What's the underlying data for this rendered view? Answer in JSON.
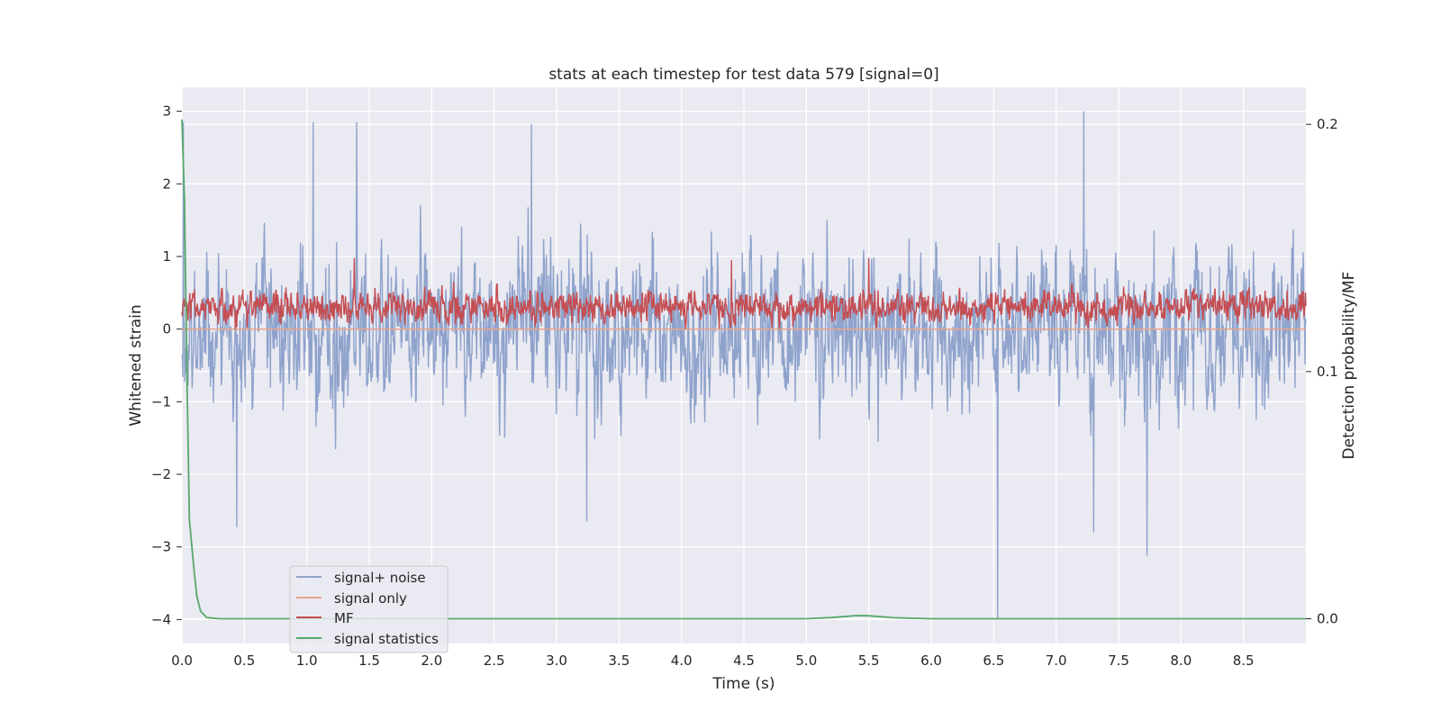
{
  "chart_data": {
    "type": "line",
    "title": "stats at each timestep for test data 579 [signal=0]",
    "xlabel": "Time (s)",
    "ylabel": "Whitened strain",
    "ylabel_right": "Detection probability/MF",
    "xlim": [
      0.0,
      9.0
    ],
    "ylim": [
      -4.33,
      3.33
    ],
    "ylim_right": [
      -0.01,
      0.215
    ],
    "x_ticks": [
      0.0,
      0.5,
      1.0,
      1.5,
      2.0,
      2.5,
      3.0,
      3.5,
      4.0,
      4.5,
      5.0,
      5.5,
      6.0,
      6.5,
      7.0,
      7.5,
      8.0,
      8.5
    ],
    "x_tick_labels": [
      "0.0",
      "0.5",
      "1.0",
      "1.5",
      "2.0",
      "2.5",
      "3.0",
      "3.5",
      "4.0",
      "4.5",
      "5.0",
      "5.5",
      "6.0",
      "6.5",
      "7.0",
      "7.5",
      "8.0",
      "8.5"
    ],
    "y_ticks": [
      -4,
      -3,
      -2,
      -1,
      0,
      1,
      2,
      3
    ],
    "y_tick_labels": [
      "−4",
      "−3",
      "−2",
      "−1",
      "0",
      "1",
      "2",
      "3"
    ],
    "y_ticks_right": [
      0.0,
      0.1,
      0.2
    ],
    "y_tick_labels_right": [
      "0.0",
      "0.1",
      "0.2"
    ],
    "grid": true,
    "legend_position": "lower-left",
    "series": [
      {
        "name": "signal+ noise",
        "axis": "left",
        "color": "#8fa3cc",
        "description_values": "noise-like whitened strain, roughly within [-2.5, 2.5]",
        "spikes": [
          {
            "x": 0.01,
            "y": 2.85
          },
          {
            "x": 1.05,
            "y": 2.85
          },
          {
            "x": 1.4,
            "y": 2.85
          },
          {
            "x": 2.8,
            "y": 2.82
          },
          {
            "x": 7.22,
            "y": 3.0
          },
          {
            "x": 6.53,
            "y": -4.0
          },
          {
            "x": 7.73,
            "y": -3.12
          },
          {
            "x": 7.3,
            "y": -2.8
          },
          {
            "x": 0.44,
            "y": -2.73
          },
          {
            "x": 3.24,
            "y": -2.65
          }
        ]
      },
      {
        "name": "signal only",
        "axis": "left",
        "color": "#e8a58c",
        "x": [
          0.0,
          9.0
        ],
        "values": [
          0.0,
          0.0
        ]
      },
      {
        "name": "MF",
        "axis": "left",
        "color": "#c44e52",
        "description_values": "matched-filter output fluctuating between about 0.0 and 0.8",
        "spikes": [
          {
            "x": 1.38,
            "y": 0.98
          },
          {
            "x": 5.5,
            "y": 0.98
          },
          {
            "x": 4.4,
            "y": 0.95
          }
        ]
      },
      {
        "name": "signal statistics",
        "axis": "right",
        "color": "#55a868",
        "x": [
          0.0,
          0.02,
          0.04,
          0.06,
          0.1,
          0.12,
          0.15,
          0.2,
          0.3,
          1.0,
          3.0,
          5.0,
          5.2,
          5.4,
          5.5,
          5.7,
          6.0,
          7.0,
          8.0,
          9.0
        ],
        "values": [
          0.202,
          0.17,
          0.1,
          0.04,
          0.018,
          0.009,
          0.003,
          0.0005,
          0.0,
          0.0,
          0.0,
          0.0,
          0.0005,
          0.0013,
          0.0012,
          0.0004,
          0.0,
          0.0,
          0.0,
          0.0
        ]
      }
    ]
  }
}
